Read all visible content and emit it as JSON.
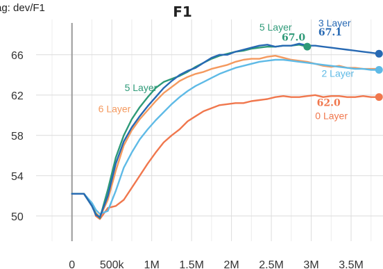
{
  "tag_label": "ag: dev/F1",
  "chart_data": {
    "type": "line",
    "title": "F1",
    "xlabel": "",
    "ylabel": "",
    "xlim": [
      -450000,
      3900000
    ],
    "ylim": [
      47.5,
      69.5
    ],
    "x_ticks": [
      0,
      500000,
      1000000,
      1500000,
      2000000,
      2500000,
      3000000,
      3500000
    ],
    "x_tick_labels": [
      "0",
      "500k",
      "1M",
      "1.5M",
      "2M",
      "2.5M",
      "3M",
      "3.5M"
    ],
    "y_ticks": [
      50,
      54,
      58,
      62,
      66
    ],
    "y_tick_labels": [
      "50",
      "54",
      "58",
      "62",
      "66"
    ],
    "grid": true,
    "series": [
      {
        "name": "0 Layer",
        "color": "#f0774d",
        "value_label": "62.0",
        "end_marker": true,
        "x": [
          0,
          150000,
          250000,
          300000,
          350000,
          450000,
          550000,
          650000,
          750000,
          850000,
          950000,
          1050000,
          1150000,
          1250000,
          1350000,
          1450000,
          1550000,
          1650000,
          1750000,
          1850000,
          1950000,
          2050000,
          2150000,
          2250000,
          2350000,
          2450000,
          2550000,
          2650000,
          2750000,
          2850000,
          2950000,
          3050000,
          3150000,
          3250000,
          3350000,
          3450000,
          3550000,
          3650000,
          3750000,
          3850000
        ],
        "y": [
          52.2,
          52.2,
          51.2,
          50.0,
          49.7,
          50.8,
          51.0,
          51.6,
          52.8,
          54.0,
          55.2,
          56.3,
          57.3,
          58.0,
          58.6,
          59.4,
          59.9,
          60.4,
          60.7,
          61.0,
          61.1,
          61.2,
          61.2,
          61.4,
          61.5,
          61.6,
          61.8,
          61.9,
          61.8,
          61.8,
          61.9,
          62.0,
          61.8,
          61.9,
          61.9,
          61.8,
          61.8,
          61.9,
          61.8,
          61.8
        ]
      },
      {
        "name": "6 Layer",
        "color": "#f4995e",
        "value_label": "",
        "end_marker": false,
        "x": [
          0,
          150000,
          250000,
          300000,
          350000,
          450000,
          550000,
          650000,
          750000,
          850000,
          950000,
          1050000,
          1150000,
          1250000,
          1350000,
          1450000,
          1550000,
          1650000,
          1750000,
          1850000,
          1950000,
          2050000,
          2150000,
          2250000,
          2350000,
          2450000,
          2550000,
          2650000,
          2750000,
          2850000,
          2950000,
          3050000,
          3150000,
          3250000,
          3350000,
          3450000,
          3550000,
          3650000,
          3750000,
          3850000
        ],
        "y": [
          52.2,
          52.2,
          51.0,
          50.3,
          49.9,
          51.6,
          54.5,
          57.0,
          58.5,
          59.6,
          60.5,
          61.4,
          62.2,
          62.8,
          63.4,
          63.8,
          64.1,
          64.3,
          64.6,
          64.8,
          65.0,
          65.3,
          65.5,
          65.6,
          65.6,
          65.8,
          65.9,
          65.7,
          65.5,
          65.4,
          65.3,
          65.1,
          64.9,
          64.8,
          64.9,
          64.7,
          64.7,
          64.6,
          64.6,
          64.6
        ]
      },
      {
        "name": "2 Layer",
        "color": "#5ebae6",
        "value_label": "",
        "end_marker": true,
        "x": [
          0,
          150000,
          250000,
          300000,
          350000,
          450000,
          550000,
          650000,
          750000,
          850000,
          950000,
          1050000,
          1150000,
          1250000,
          1350000,
          1450000,
          1550000,
          1650000,
          1750000,
          1850000,
          1950000,
          2050000,
          2150000,
          2250000,
          2350000,
          2450000,
          2550000,
          2650000,
          2750000,
          2850000,
          2950000,
          3050000,
          3150000,
          3250000,
          3350000,
          3450000,
          3550000,
          3650000,
          3750000,
          3850000
        ],
        "y": [
          52.2,
          52.2,
          51.3,
          50.6,
          50.2,
          50.5,
          52.5,
          54.8,
          56.3,
          57.6,
          58.6,
          59.5,
          60.3,
          61.1,
          61.8,
          62.4,
          62.9,
          63.3,
          63.7,
          64.1,
          64.4,
          64.7,
          64.9,
          65.1,
          65.3,
          65.4,
          65.5,
          65.5,
          65.4,
          65.3,
          65.2,
          65.1,
          65.0,
          64.9,
          64.8,
          64.7,
          64.6,
          64.6,
          64.5,
          64.5
        ]
      },
      {
        "name": "5 Layer",
        "color": "#2e9a78",
        "value_label": "67.0",
        "end_marker": true,
        "x": [
          0,
          150000,
          250000,
          300000,
          350000,
          450000,
          550000,
          650000,
          750000,
          850000,
          950000,
          1050000,
          1150000,
          1250000,
          1350000,
          1450000,
          1550000,
          1650000,
          1750000,
          1850000,
          1950000,
          2050000,
          2150000,
          2250000,
          2350000,
          2450000,
          2550000,
          2650000,
          2750000,
          2850000,
          2950000
        ],
        "y": [
          52.2,
          52.2,
          51.0,
          50.2,
          49.8,
          52.6,
          55.8,
          58.0,
          59.6,
          60.8,
          61.8,
          62.7,
          63.3,
          63.6,
          63.9,
          64.3,
          64.8,
          65.2,
          65.6,
          65.9,
          66.1,
          66.3,
          66.4,
          66.6,
          66.7,
          66.8,
          66.8,
          66.9,
          66.9,
          67.0,
          66.8
        ]
      },
      {
        "name": "3 Layer",
        "color": "#2769b3",
        "value_label": "67.1",
        "end_marker": true,
        "x": [
          0,
          150000,
          250000,
          300000,
          350000,
          450000,
          550000,
          650000,
          750000,
          850000,
          950000,
          1050000,
          1150000,
          1250000,
          1350000,
          1450000,
          1550000,
          1650000,
          1750000,
          1850000,
          1950000,
          2050000,
          2150000,
          2250000,
          2350000,
          2450000,
          2550000,
          2650000,
          2750000,
          2850000,
          2950000,
          3050000,
          3150000,
          3250000,
          3350000,
          3450000,
          3550000,
          3650000,
          3750000,
          3850000
        ],
        "y": [
          52.2,
          52.2,
          51.0,
          50.1,
          49.9,
          52.0,
          55.2,
          57.4,
          58.8,
          59.9,
          60.9,
          61.8,
          62.7,
          63.4,
          64.0,
          64.4,
          64.7,
          65.2,
          65.7,
          66.0,
          66.0,
          66.3,
          66.5,
          66.7,
          66.9,
          67.0,
          66.8,
          66.9,
          66.9,
          67.1,
          66.9,
          66.9,
          66.8,
          66.7,
          66.6,
          66.5,
          66.4,
          66.3,
          66.2,
          66.1
        ]
      }
    ],
    "annotations": [
      {
        "text": "5 Layer",
        "series": "5 Layer",
        "kind": "name",
        "at": [
          2350000,
          68.4
        ]
      },
      {
        "text": "67.0",
        "series": "5 Layer",
        "kind": "value",
        "at": [
          2630000,
          67.4
        ]
      },
      {
        "text": "3 Layer",
        "series": "3 Layer",
        "kind": "name",
        "at": [
          3090000,
          68.8
        ]
      },
      {
        "text": "67.1",
        "series": "3 Layer",
        "kind": "value",
        "at": [
          3090000,
          67.9
        ]
      },
      {
        "text": "5 Layer",
        "series": "5 Layer",
        "kind": "name",
        "at": [
          660000,
          62.4
        ]
      },
      {
        "text": "6 Layer",
        "series": "6 Layer",
        "kind": "name",
        "at": [
          330000,
          60.3
        ]
      },
      {
        "text": "2 Layer",
        "series": "2 Layer",
        "kind": "name",
        "at": [
          3130000,
          63.8
        ]
      },
      {
        "text": "62.0",
        "series": "0 Layer",
        "kind": "value",
        "at": [
          3070000,
          60.9
        ]
      },
      {
        "text": "0 Layer",
        "series": "0 Layer",
        "kind": "name",
        "at": [
          3050000,
          59.6
        ]
      }
    ]
  }
}
